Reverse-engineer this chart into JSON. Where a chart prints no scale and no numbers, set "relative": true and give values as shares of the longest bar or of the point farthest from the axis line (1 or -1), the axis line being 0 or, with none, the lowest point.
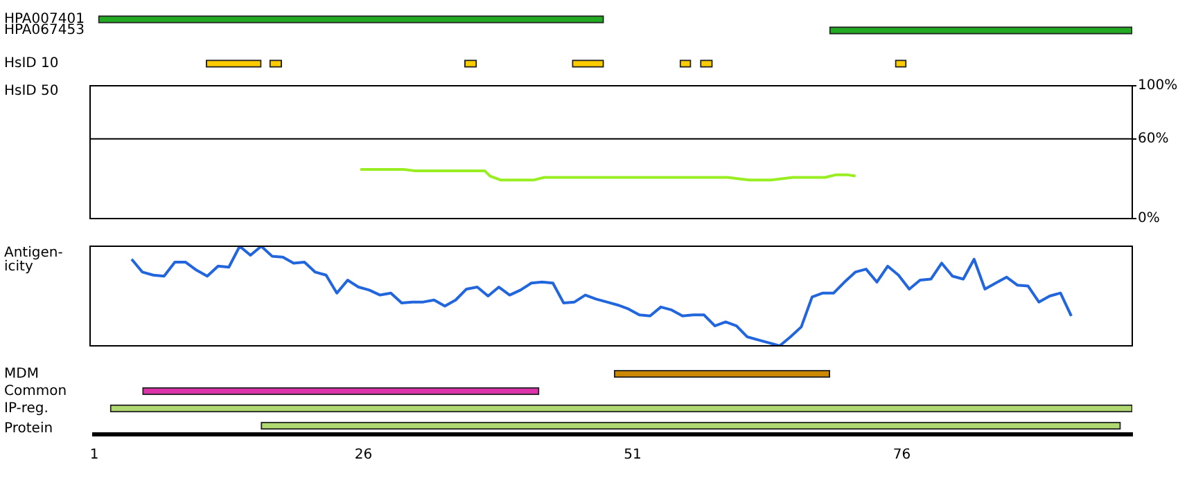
{
  "chart_data": [
    {
      "type": "bar",
      "orientation": "horizontal",
      "categories": [
        "HPA007401",
        "HPA067453",
        null,
        null,
        "HsID 10"
      ],
      "series": [
        {
          "color": "#22aa22",
          "values": [
            46.9,
            28.1,
            null,
            null,
            null
          ],
          "base": [
            1.4,
            69.3,
            null,
            null,
            null
          ]
        },
        {
          "color": "#ffcc00",
          "values": [
            null,
            null,
            null,
            null,
            5.1
          ],
          "base": [
            null,
            null,
            null,
            null,
            11.4
          ]
        },
        {
          "color": "#ffcc00",
          "values": [
            null,
            null,
            null,
            null,
            1.1
          ],
          "base": [
            null,
            null,
            null,
            null,
            17.3
          ]
        },
        {
          "color": "#ffcc00",
          "values": [
            null,
            null,
            null,
            null,
            1.1
          ],
          "base": [
            null,
            null,
            null,
            null,
            35.4
          ]
        },
        {
          "color": "#ffcc00",
          "values": [
            null,
            null,
            null,
            null,
            2.9
          ],
          "base": [
            null,
            null,
            null,
            null,
            45.4
          ]
        },
        {
          "color": "#ffcc00",
          "values": [
            null,
            null,
            null,
            null,
            1.0
          ],
          "base": [
            null,
            null,
            null,
            null,
            55.4
          ]
        },
        {
          "color": "#ffcc00",
          "values": [
            null,
            null,
            null,
            null,
            1.1
          ],
          "base": [
            null,
            null,
            null,
            null,
            57.3
          ]
        },
        {
          "color": "#ffcc00",
          "values": [
            null,
            null,
            null,
            null,
            1.0
          ],
          "base": [
            null,
            null,
            null,
            null,
            75.4
          ]
        }
      ],
      "xlim": [
        1,
        97.4
      ],
      "tick_labels": "y"
    },
    {
      "type": "line",
      "series": [
        {
          "name": "HsID 50",
          "color": "#99ee22",
          "x": [
            26,
            30,
            31,
            37.5,
            38,
            39,
            42,
            43,
            50,
            60,
            61,
            62,
            64,
            66,
            67,
            69,
            70,
            71,
            71.8
          ],
          "values": [
            37,
            37,
            36,
            36,
            32,
            29,
            29,
            31,
            31,
            31,
            30,
            29,
            29,
            31,
            31,
            31,
            33,
            33,
            32
          ]
        }
      ],
      "xlim": [
        1,
        97.4
      ],
      "ylim": [
        0,
        100
      ],
      "yticks": [
        {
          "value": 0,
          "label": "0%"
        },
        {
          "value": 60,
          "label": "60%"
        },
        {
          "value": 100,
          "label": "100%"
        }
      ],
      "ref_lines": [
        {
          "axis": "y",
          "value": 60,
          "color": "#000000"
        }
      ],
      "tick_labels": "y"
    },
    {
      "type": "line",
      "relative": true,
      "ylabel": "Antigen-icity",
      "categories": [
        null,
        null,
        null,
        null,
        null,
        null,
        null,
        null,
        null,
        null,
        null,
        null,
        null,
        null,
        null,
        null,
        null,
        null,
        null,
        null,
        null,
        null,
        null,
        null,
        null,
        null,
        null,
        null,
        null,
        null,
        null,
        null,
        null,
        null,
        null,
        null,
        null,
        null,
        null,
        null,
        null,
        null,
        null,
        null,
        null,
        null,
        null,
        null,
        null,
        null,
        null,
        null,
        null,
        null,
        null,
        null,
        null,
        null,
        null,
        null,
        null,
        null,
        null,
        null,
        null,
        null,
        null,
        null,
        null,
        null,
        null,
        null,
        null,
        null,
        null,
        null,
        null,
        null,
        null,
        null,
        null,
        null,
        null,
        null,
        null,
        null,
        null,
        null
      ],
      "series": [
        {
          "color": "#2266dd",
          "values": [
            0.87,
            0.74,
            0.71,
            0.7,
            0.84,
            0.84,
            0.76,
            0.7,
            0.8,
            0.79,
            1,
            0.91,
            1,
            0.9,
            0.89,
            0.83,
            0.84,
            0.74,
            0.71,
            0.53,
            0.66,
            0.59,
            0.56,
            0.51,
            0.53,
            0.43,
            0.44,
            0.44,
            0.46,
            0.4,
            0.46,
            0.57,
            0.59,
            0.5,
            0.59,
            0.51,
            0.56,
            0.63,
            0.64,
            0.63,
            0.43,
            0.44,
            0.51,
            0.47,
            0.44,
            0.41,
            0.37,
            0.31,
            0.3,
            0.39,
            0.36,
            0.3,
            0.31,
            0.31,
            0.2,
            0.24,
            0.2,
            0.09,
            0.06,
            0.03,
            0,
            0.09,
            0.19,
            0.49,
            0.53,
            0.53,
            0.64,
            0.74,
            0.77,
            0.64,
            0.8,
            0.71,
            0.57,
            0.66,
            0.67,
            0.83,
            0.7,
            0.67,
            0.87,
            0.57,
            0.63,
            0.69,
            0.61,
            0.6,
            0.44,
            0.5,
            0.53,
            0.3
          ]
        }
      ],
      "tick_labels": false
    },
    {
      "type": "bar",
      "orientation": "horizontal",
      "categories": [
        "MDM",
        "Common",
        "IP-reg.",
        null
      ],
      "series": [
        {
          "colors": [
            "#cc8800",
            "#dd33aa",
            "#b0d870",
            "#b0d870"
          ],
          "values": [
            20,
            36.8,
            94.9,
            79.8
          ],
          "base": [
            49.3,
            5.5,
            2.5,
            16.5
          ]
        }
      ],
      "xlim": [
        1,
        97.4
      ],
      "xticks": [
        1,
        26,
        51,
        76
      ],
      "xlabel": "Protein"
    }
  ]
}
